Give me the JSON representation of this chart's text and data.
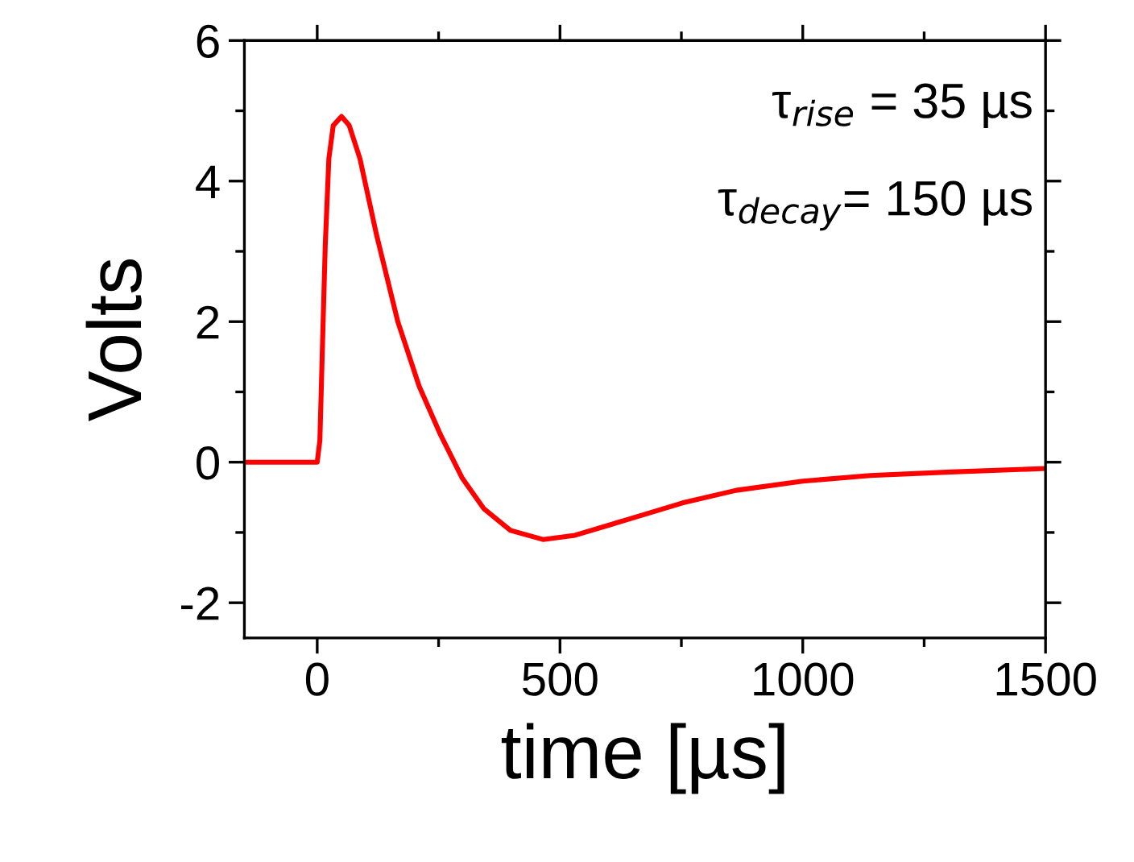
{
  "chart_data": {
    "type": "line",
    "xlabel": "time [µs]",
    "ylabel": "Volts",
    "annotations": [
      "τ$_{rise}$ = 35 µs",
      "τ$_{decay}$= 150 µs"
    ],
    "x": [
      -150,
      0,
      5.5,
      11,
      16.6,
      24,
      33,
      50,
      66,
      88,
      122,
      166,
      210,
      254,
      299,
      343,
      398,
      465,
      531,
      642,
      752,
      863,
      1000,
      1139,
      1305,
      1500
    ],
    "series": [
      {
        "color": "#ff0000",
        "values": [
          0,
          0,
          0.31,
          1.7,
          3.09,
          4.32,
          4.79,
          4.92,
          4.79,
          4.32,
          3.24,
          2.0,
          1.08,
          0.39,
          -0.23,
          -0.66,
          -0.97,
          -1.1,
          -1.04,
          -0.81,
          -0.58,
          -0.4,
          -0.27,
          -0.19,
          -0.14,
          -0.09
        ]
      }
    ],
    "xlim": [
      -150,
      1500
    ],
    "ylim": [
      -2.5,
      6
    ],
    "xticks": [
      0,
      {
        "value": 250,
        "label": null
      },
      500,
      {
        "value": 750,
        "label": null
      },
      1000,
      {
        "value": 1250,
        "label": null
      },
      1500
    ],
    "yticks": [
      -2,
      {
        "value": -1,
        "label": null
      },
      0,
      {
        "value": 1,
        "label": null
      },
      2,
      {
        "value": 3,
        "label": null
      },
      4,
      {
        "value": 5,
        "label": null
      },
      6
    ],
    "grid": false,
    "legend": false,
    "marker": "none",
    "line_style": "solid"
  }
}
